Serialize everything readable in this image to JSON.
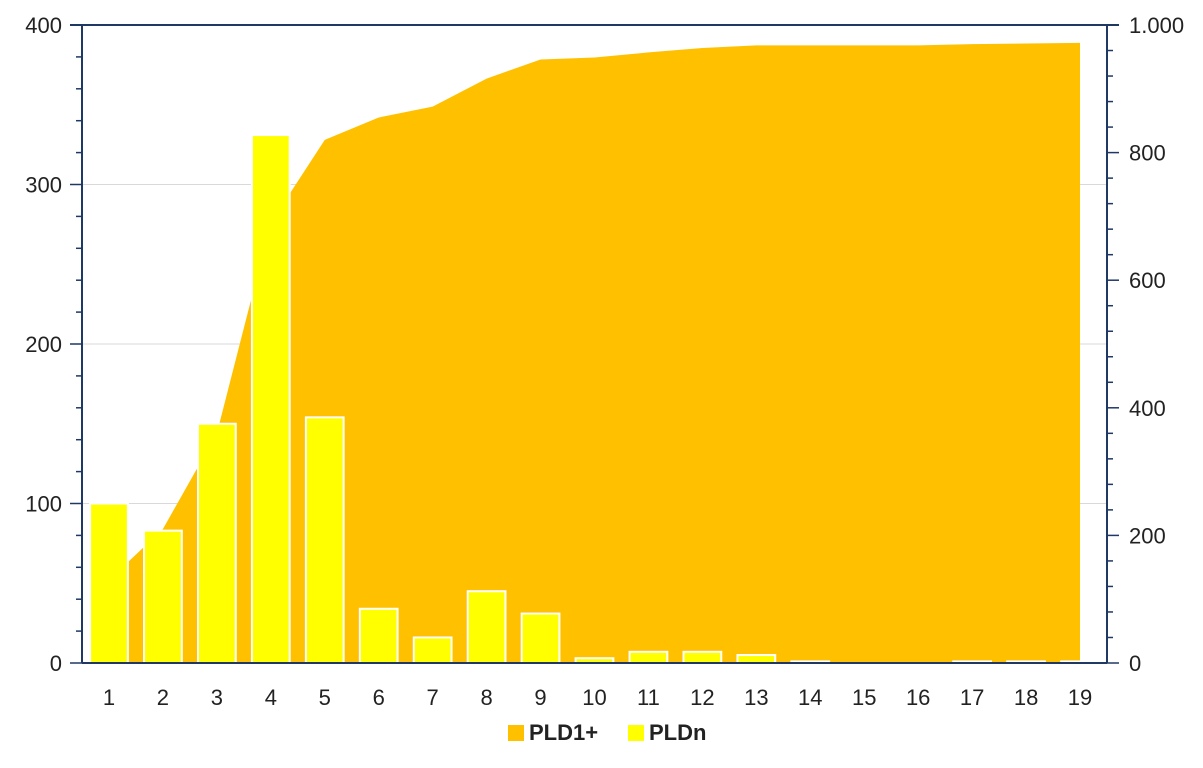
{
  "chart_data": {
    "type": "bar",
    "categories": [
      "1",
      "2",
      "3",
      "4",
      "5",
      "6",
      "7",
      "8",
      "9",
      "10",
      "11",
      "12",
      "13",
      "14",
      "15",
      "16",
      "17",
      "18",
      "19"
    ],
    "series": [
      {
        "name": "PLD1+",
        "type": "area",
        "axis": "right",
        "values": [
          130,
          210,
          360,
          690,
          820,
          855,
          872,
          916,
          946,
          949,
          957,
          964,
          968,
          968,
          968,
          968,
          970,
          971,
          972
        ]
      },
      {
        "name": "PLDn",
        "type": "bar",
        "axis": "left",
        "values": [
          100,
          83,
          150,
          331,
          154,
          34,
          16,
          45,
          31,
          3,
          7,
          7,
          5,
          1,
          0,
          0,
          1,
          1,
          1
        ]
      }
    ],
    "y_left": {
      "lim": [
        0,
        400
      ],
      "ticks": [
        0,
        100,
        200,
        300,
        400
      ],
      "tick_labels": [
        "0",
        "100",
        "200",
        "300",
        "400"
      ]
    },
    "y_right": {
      "lim": [
        0,
        1000
      ],
      "ticks": [
        0,
        200,
        400,
        600,
        800,
        1000
      ],
      "tick_labels": [
        "0",
        "200",
        "400",
        "600",
        "800",
        "1.000"
      ]
    },
    "grid": true,
    "legend_position": "bottom",
    "colors": {
      "area": "#FFC000",
      "bars": "#FFFF00",
      "bar_border": "#FFFFFF",
      "axis": "#1F3864",
      "grid": "#D9D9D9"
    }
  }
}
